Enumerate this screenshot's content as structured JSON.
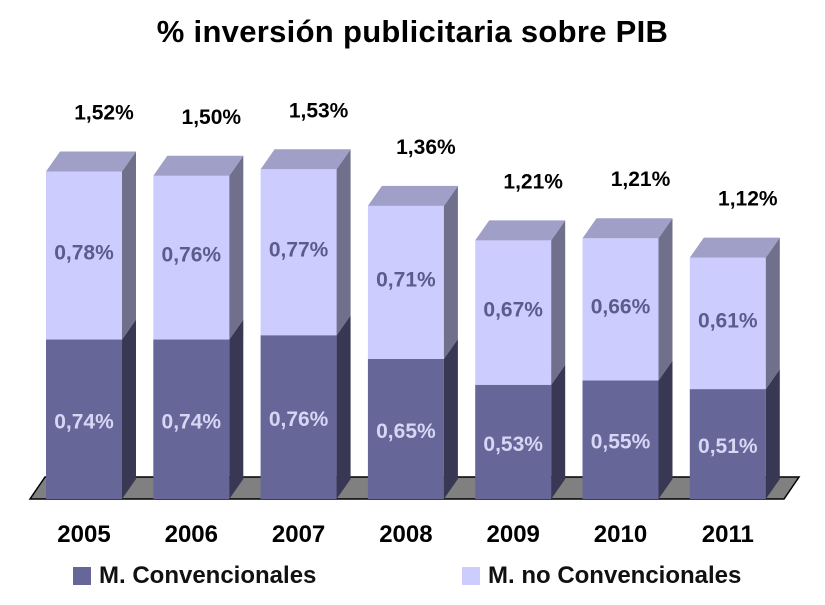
{
  "title": "% inversión publicitaria sobre PIB",
  "colors": {
    "convencionales": "#666699",
    "no_convencionales": "#ccccff",
    "floor": "#808080"
  },
  "chart_data": {
    "type": "bar",
    "stacked": true,
    "title": "% inversión publicitaria sobre PIB",
    "categories": [
      "2005",
      "2006",
      "2007",
      "2008",
      "2009",
      "2010",
      "2011"
    ],
    "series": [
      {
        "name": "M. Convencionales",
        "values": [
          0.74,
          0.74,
          0.76,
          0.65,
          0.53,
          0.55,
          0.51
        ],
        "labels": [
          "0,74%",
          "0,74%",
          "0,76%",
          "0,65%",
          "0,53%",
          "0,55%",
          "0,51%"
        ]
      },
      {
        "name": "M. no Convencionales",
        "values": [
          0.78,
          0.76,
          0.77,
          0.71,
          0.67,
          0.66,
          0.61
        ],
        "labels": [
          "0,78%",
          "0,76%",
          "0,77%",
          "0,71%",
          "0,67%",
          "0,66%",
          "0,61%"
        ]
      }
    ],
    "totals": [
      1.52,
      1.5,
      1.53,
      1.36,
      1.21,
      1.21,
      1.12
    ],
    "total_labels": [
      "1,52%",
      "1,50%",
      "1,53%",
      "1,36%",
      "1,21%",
      "1,21%",
      "1,12%"
    ],
    "grid": false,
    "legend_position": "bottom",
    "style": "3d"
  }
}
